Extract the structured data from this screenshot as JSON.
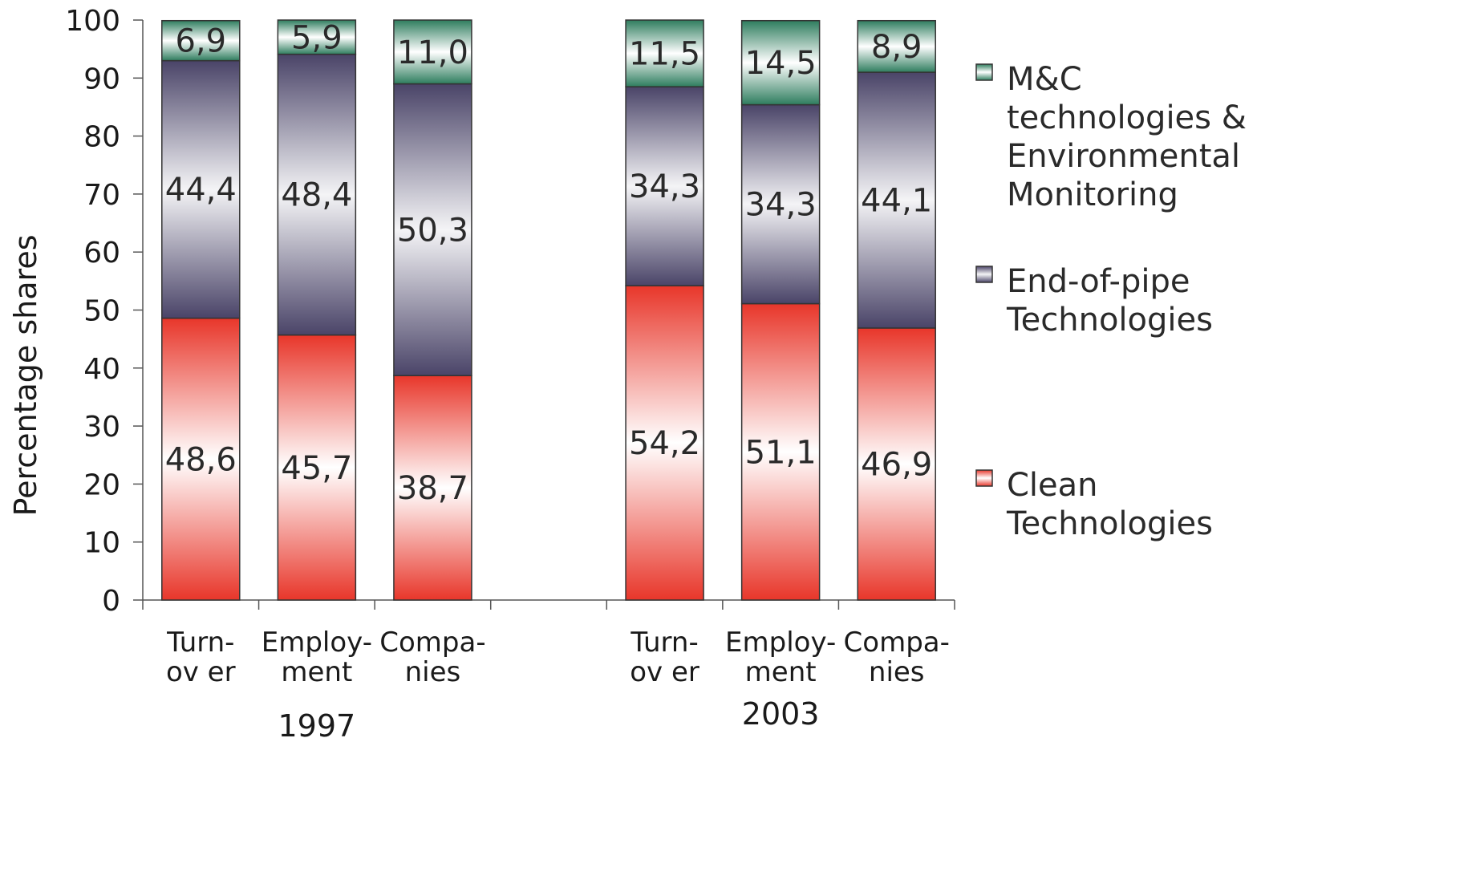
{
  "chart_data": {
    "type": "bar",
    "stacked": true,
    "ylabel": "Percentage shares",
    "ylim": [
      0,
      100
    ],
    "yticks": [
      0,
      10,
      20,
      30,
      40,
      50,
      60,
      70,
      80,
      90,
      100
    ],
    "groups": [
      {
        "label": "1997",
        "categories": [
          {
            "line1": "Turn-",
            "line2": "ov er"
          },
          {
            "line1": "Employ-",
            "line2": "ment"
          },
          {
            "line1": "Compa-",
            "line2": "nies"
          }
        ],
        "values": {
          "clean": [
            48.6,
            45.7,
            38.7
          ],
          "endofpipe": [
            44.4,
            48.4,
            50.3
          ],
          "mc": [
            6.9,
            5.9,
            11.0
          ]
        },
        "labels": {
          "clean": [
            "48,6",
            "45,7",
            "38,7"
          ],
          "endofpipe": [
            "44,4",
            "48,4",
            "50,3"
          ],
          "mc": [
            "6,9",
            "5,9",
            "11,0"
          ]
        }
      },
      {
        "label": "2003",
        "categories": [
          {
            "line1": "Turn-",
            "line2": "ov er"
          },
          {
            "line1": "Employ-",
            "line2": "ment"
          },
          {
            "line1": "Compa-",
            "line2": "nies"
          }
        ],
        "values": {
          "clean": [
            54.2,
            51.1,
            46.9
          ],
          "endofpipe": [
            34.3,
            34.3,
            44.1
          ],
          "mc": [
            11.5,
            14.5,
            8.9
          ]
        },
        "labels": {
          "clean": [
            "54,2",
            "51,1",
            "46,9"
          ],
          "endofpipe": [
            "34,3",
            "34,3",
            "44,1"
          ],
          "mc": [
            "11,5",
            "14,5",
            "8,9"
          ]
        }
      }
    ],
    "series": [
      {
        "key": "mc",
        "name_lines": [
          "M&C",
          "technologies &",
          "Environmental",
          "Monitoring"
        ],
        "color": "#2e7d5e"
      },
      {
        "key": "endofpipe",
        "name_lines": [
          "End-of-pipe",
          "Technologies"
        ],
        "color": "#4a4468"
      },
      {
        "key": "clean",
        "name_lines": [
          "Clean",
          "Technologies"
        ],
        "color": "#e8362a"
      }
    ],
    "legend_position": "right",
    "grid": false
  }
}
